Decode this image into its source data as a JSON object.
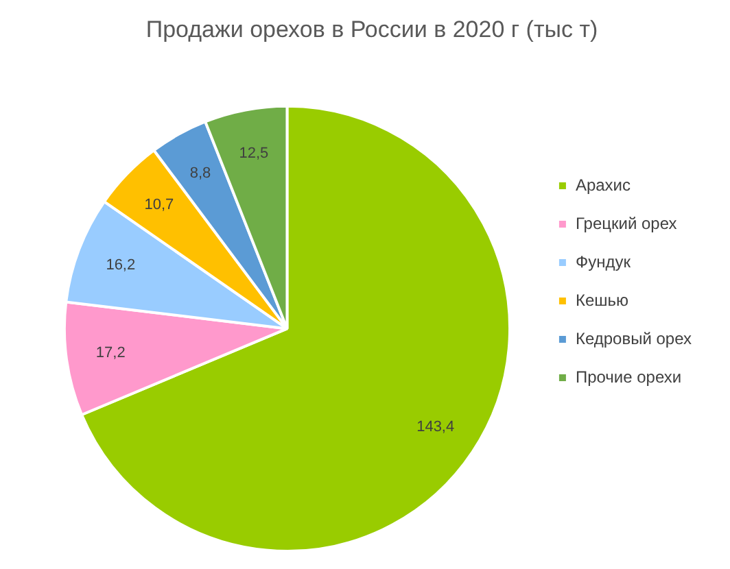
{
  "chart_data": {
    "type": "pie",
    "title": "Продажи орехов в России в 2020 г (тыс т)",
    "categories": [
      "Арахис",
      "Грецкий орех",
      "Фундук",
      "Кешью",
      "Кедровый орех",
      "Прочие орехи"
    ],
    "values": [
      143.4,
      17.2,
      16.2,
      10.7,
      8.8,
      12.5
    ],
    "value_labels": [
      "143,4",
      "17,2",
      "16,2",
      "10,7",
      "8,8",
      "12,5"
    ],
    "colors": [
      "#99cc00",
      "#ff99cc",
      "#99ccff",
      "#ffc000",
      "#5b9bd5",
      "#70ad47"
    ],
    "legend": "right"
  }
}
